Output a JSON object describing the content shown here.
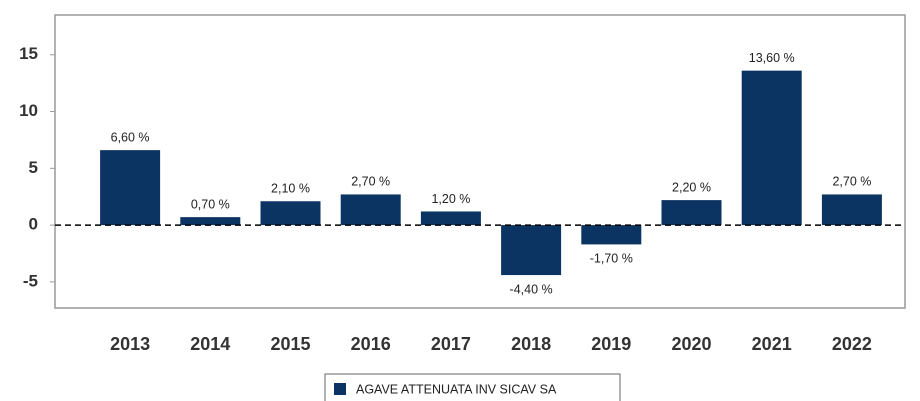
{
  "chart_data": {
    "type": "bar",
    "categories": [
      "2013",
      "2014",
      "2015",
      "2016",
      "2017",
      "2018",
      "2019",
      "2020",
      "2021",
      "2022"
    ],
    "series": [
      {
        "name": "AGAVE ATTENUATA INV SICAV SA",
        "color": "#0b3462",
        "values": [
          6.6,
          0.7,
          2.1,
          2.7,
          1.2,
          -4.4,
          -1.7,
          2.2,
          13.6,
          2.7
        ],
        "value_labels": [
          "6,60 %",
          "0,70 %",
          "2,10 %",
          "2,70 %",
          "1,20 %",
          "-4,40 %",
          "-1,70 %",
          "2,20 %",
          "13,60 %",
          "2,70 %"
        ]
      }
    ],
    "ylim": [
      -7.3,
      18.5
    ],
    "yticks": [
      -5,
      0,
      5,
      10,
      15
    ],
    "legend": "bottom"
  }
}
